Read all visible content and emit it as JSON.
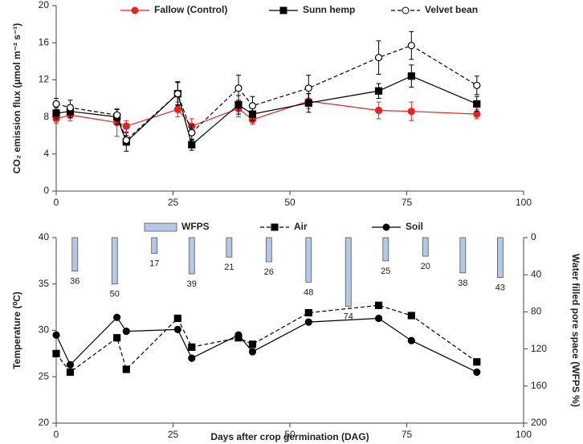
{
  "chart_data": [
    {
      "type": "line",
      "ylabel": "CO₂ emission flux (µmol m⁻² s⁻¹)",
      "xlim": [
        0,
        100
      ],
      "xticks": [
        0,
        25,
        50,
        75,
        100
      ],
      "ylim": [
        0,
        20
      ],
      "yticks": [
        0,
        4,
        8,
        12,
        16,
        20
      ],
      "grid": false,
      "x": [
        0,
        3,
        13,
        15,
        26,
        29,
        39,
        42,
        54,
        69,
        76,
        90
      ],
      "series": [
        {
          "name": "Fallow (Control)",
          "color": "#e8231f",
          "marker": "circle",
          "filled": true,
          "dashed": false,
          "values": [
            7.8,
            8.2,
            7.4,
            7.0,
            8.8,
            7.0,
            8.9,
            7.7,
            9.7,
            8.7,
            8.6,
            8.3
          ],
          "errors": [
            0.5,
            0.6,
            1.5,
            0.6,
            0.8,
            0.8,
            0.9,
            0.5,
            0.8,
            0.9,
            1.0,
            0.5
          ]
        },
        {
          "name": "Sunn hemp",
          "color": "#000000",
          "marker": "square",
          "filled": true,
          "dashed": false,
          "values": [
            8.4,
            8.6,
            8.0,
            5.3,
            10.5,
            5.0,
            9.3,
            8.3,
            9.5,
            10.8,
            12.4,
            9.4
          ],
          "errors": [
            0.6,
            0.7,
            0.8,
            1.0,
            1.2,
            0.6,
            1.0,
            0.7,
            1.0,
            0.8,
            1.2,
            0.8
          ]
        },
        {
          "name": "Velvet bean",
          "color": "#000000",
          "marker": "circle",
          "filled": false,
          "dashed": true,
          "values": [
            9.4,
            9.0,
            8.2,
            5.5,
            10.5,
            6.3,
            11.1,
            9.2,
            11.1,
            14.4,
            15.7,
            11.4
          ],
          "errors": [
            0.6,
            0.8,
            0.6,
            0.5,
            1.3,
            0.8,
            1.4,
            1.0,
            1.4,
            1.8,
            1.5,
            1.0
          ]
        }
      ]
    },
    {
      "type": "combo",
      "xlabel": "Days after crop germination (DAG)",
      "ylabel": "Temperature (⁰C)",
      "y2label": "Water filled pore space (WFPS %)",
      "xlim": [
        0,
        100
      ],
      "xticks": [
        0,
        25,
        50,
        75,
        100
      ],
      "ylim": [
        20,
        40
      ],
      "yticks": [
        20,
        25,
        30,
        35,
        40
      ],
      "y2lim": [
        200,
        0
      ],
      "y2ticks": [
        0,
        40,
        80,
        120,
        160,
        200
      ],
      "grid": false,
      "series": [
        {
          "name": "WFPS",
          "type": "bar",
          "axis": "y2",
          "color": "#b4c7e7",
          "x": [
            4,
            12.5,
            21,
            29,
            37,
            45.5,
            54,
            62.5,
            70.5,
            79,
            87,
            95
          ],
          "values": [
            36,
            50,
            17,
            39,
            21,
            26,
            48,
            74,
            25,
            20,
            38,
            43
          ]
        },
        {
          "name": "Air",
          "type": "line",
          "color": "#000000",
          "marker": "square",
          "filled": true,
          "dashed": true,
          "x": [
            0,
            3,
            13,
            15,
            26,
            29,
            39,
            42,
            54,
            69,
            76,
            90
          ],
          "values": [
            27.5,
            25.5,
            29.2,
            25.8,
            31.3,
            28.2,
            29.2,
            28.5,
            31.9,
            32.7,
            31.6,
            26.6
          ]
        },
        {
          "name": "Soil",
          "type": "line",
          "color": "#000000",
          "marker": "circle",
          "filled": true,
          "dashed": false,
          "x": [
            0,
            3,
            13,
            15,
            26,
            29,
            39,
            42,
            54,
            69,
            76,
            90
          ],
          "values": [
            29.5,
            26.3,
            31.4,
            29.9,
            30.1,
            27.0,
            29.5,
            27.7,
            30.9,
            31.3,
            28.9,
            25.5
          ]
        }
      ]
    }
  ]
}
